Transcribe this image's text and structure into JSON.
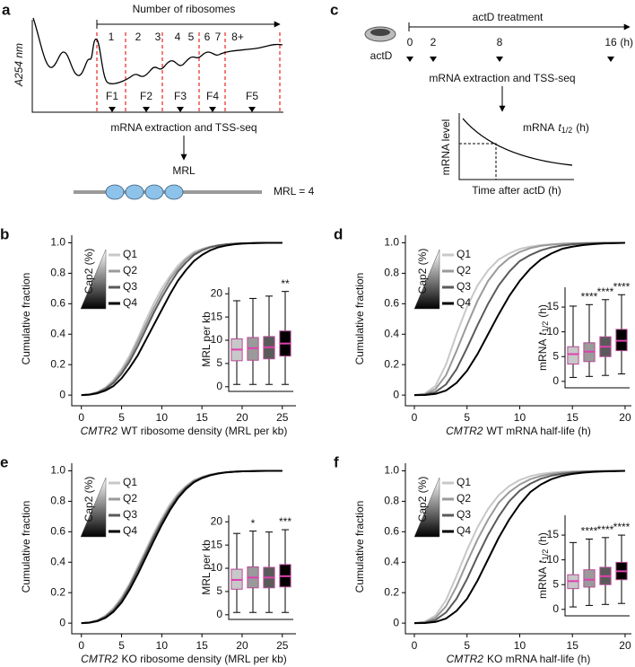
{
  "panel_a": {
    "label": "a",
    "y_label": "A254 nm",
    "header": "Number of ribosomes",
    "ribosome_counts": [
      "1",
      "2",
      "3",
      "4",
      "5",
      "6",
      "7",
      "8+"
    ],
    "fractions": [
      "F1",
      "F2",
      "F3",
      "F4",
      "F5"
    ],
    "step": "mRNA extraction and TSS-seq",
    "result": "MRL",
    "example": "MRL = 4"
  },
  "panel_c": {
    "label": "c",
    "drug": "actD",
    "header": "actD treatment",
    "timepoints": [
      "0",
      "2",
      "8",
      "16"
    ],
    "time_unit": "(h)",
    "step": "mRNA extraction and TSS-seq",
    "plot_ylabel": "mRNA level",
    "plot_xlabel": "Time after actD (h)",
    "plot_annotation": {
      "prefix": "mRNA",
      "symbol": "t",
      "subscript": "1/2",
      "unit": "(h)"
    }
  },
  "chart_data": [
    {
      "label": "b",
      "type": "line",
      "ylabel": "Cumulative fraction",
      "xlabel": {
        "gene": "CMTR2",
        "text": "WT ribosome density (MRL per kb)"
      },
      "legend_title": "Cap2 (%)",
      "legend": "upper left",
      "x": [
        0,
        1,
        2,
        3,
        4,
        5,
        6,
        7,
        8,
        9,
        10,
        11,
        12,
        13,
        14,
        15,
        16,
        17,
        18,
        19,
        20,
        21,
        22,
        23,
        24,
        25
      ],
      "series": [
        {
          "name": "Q1",
          "color": "#c8c8c8",
          "values": [
            0,
            0.005,
            0.02,
            0.05,
            0.1,
            0.17,
            0.26,
            0.37,
            0.49,
            0.6,
            0.7,
            0.78,
            0.85,
            0.9,
            0.94,
            0.96,
            0.975,
            0.985,
            0.99,
            0.995,
            0.997,
            0.998,
            0.999,
            1,
            1,
            1
          ]
        },
        {
          "name": "Q2",
          "color": "#9a9a9a",
          "values": [
            0,
            0.004,
            0.018,
            0.045,
            0.09,
            0.155,
            0.24,
            0.35,
            0.46,
            0.57,
            0.67,
            0.76,
            0.83,
            0.89,
            0.93,
            0.955,
            0.972,
            0.983,
            0.99,
            0.994,
            0.997,
            0.998,
            0.999,
            1,
            1,
            1
          ]
        },
        {
          "name": "Q3",
          "color": "#5a5a5a",
          "values": [
            0,
            0.004,
            0.016,
            0.04,
            0.08,
            0.14,
            0.22,
            0.32,
            0.43,
            0.54,
            0.64,
            0.73,
            0.81,
            0.87,
            0.92,
            0.95,
            0.97,
            0.982,
            0.99,
            0.994,
            0.997,
            0.998,
            0.999,
            1,
            1,
            1
          ]
        },
        {
          "name": "Q4",
          "color": "#000000",
          "values": [
            0,
            0.003,
            0.012,
            0.03,
            0.06,
            0.11,
            0.18,
            0.26,
            0.36,
            0.46,
            0.56,
            0.66,
            0.75,
            0.82,
            0.88,
            0.92,
            0.95,
            0.97,
            0.982,
            0.99,
            0.995,
            0.997,
            0.999,
            1,
            1,
            1
          ]
        }
      ],
      "xlim": [
        -1.2,
        26.7
      ],
      "ylim": [
        -0.07,
        1.05
      ],
      "xticks": [
        0,
        5,
        10,
        15,
        20,
        25
      ],
      "yticks": [
        0,
        0.2,
        0.4,
        0.6,
        0.8,
        {
          "value": 1,
          "label": "1.0"
        }
      ],
      "inset": {
        "type": "box",
        "ylabel": "MRL per kb",
        "ylim": [
          -1,
          21.4
        ],
        "yticks": [
          0,
          5,
          10,
          15,
          20
        ],
        "median_color": "#e040b0",
        "box_edge_color": "#b84a98",
        "boxes": [
          {
            "min": 0.5,
            "q1": 5.6,
            "median": 8,
            "q3": 10.3,
            "max": 18.5
          },
          {
            "min": 0.5,
            "q1": 5.7,
            "median": 8.3,
            "q3": 10.6,
            "max": 19
          },
          {
            "min": 0.5,
            "q1": 6,
            "median": 8.5,
            "q3": 10.8,
            "max": 19.5
          },
          {
            "min": 0.5,
            "q1": 6.6,
            "median": 9.3,
            "q3": 12,
            "max": 20.5
          }
        ],
        "significance": [
          null,
          null,
          null,
          "**"
        ]
      }
    },
    {
      "label": "d",
      "type": "line",
      "ylabel": "Cumulative fraction",
      "xlabel": {
        "gene": "CMTR2",
        "text": "WT mRNA half-life (h)"
      },
      "legend_title": "Cap2 (%)",
      "legend": "upper left",
      "x": [
        0,
        1,
        2,
        3,
        4,
        5,
        6,
        7,
        8,
        9,
        10,
        11,
        12,
        13,
        14,
        15,
        16,
        17,
        18,
        19,
        20
      ],
      "series": [
        {
          "name": "Q1",
          "color": "#c8c8c8",
          "values": [
            0,
            0.01,
            0.06,
            0.2,
            0.4,
            0.58,
            0.72,
            0.82,
            0.89,
            0.93,
            0.96,
            0.975,
            0.985,
            0.99,
            0.995,
            0.997,
            0.998,
            0.999,
            1,
            1,
            1
          ]
        },
        {
          "name": "Q2",
          "color": "#9a9a9a",
          "values": [
            0,
            0.005,
            0.04,
            0.13,
            0.29,
            0.46,
            0.62,
            0.75,
            0.84,
            0.9,
            0.94,
            0.965,
            0.98,
            0.988,
            0.993,
            0.996,
            0.998,
            0.999,
            1,
            1,
            1
          ]
        },
        {
          "name": "Q3",
          "color": "#5a5a5a",
          "values": [
            0,
            0.003,
            0.02,
            0.07,
            0.17,
            0.31,
            0.46,
            0.6,
            0.72,
            0.81,
            0.88,
            0.92,
            0.95,
            0.97,
            0.982,
            0.99,
            0.995,
            0.997,
            0.999,
            1,
            1
          ]
        },
        {
          "name": "Q4",
          "color": "#000000",
          "values": [
            0,
            0.001,
            0.008,
            0.03,
            0.08,
            0.16,
            0.27,
            0.4,
            0.53,
            0.65,
            0.75,
            0.83,
            0.89,
            0.93,
            0.96,
            0.975,
            0.985,
            0.992,
            0.996,
            0.998,
            1
          ]
        }
      ],
      "xlim": [
        -0.85,
        20.6
      ],
      "ylim": [
        -0.07,
        1.05
      ],
      "xticks": [
        0,
        5,
        10,
        15,
        20
      ],
      "yticks": [
        0,
        0.2,
        0.4,
        0.6,
        0.8,
        {
          "value": 1,
          "label": "1.0"
        }
      ],
      "inset": {
        "type": "box",
        "ylabel": {
          "prefix": "mRNA",
          "symbol": "t",
          "subscript": "1/2",
          "unit": "(h)"
        },
        "ylim": [
          -1.3,
          19
        ],
        "yticks": [
          0,
          5,
          10,
          15
        ],
        "median_color": "#e040b0",
        "box_edge_color": "#b84a98",
        "boxes": [
          {
            "min": 0.8,
            "q1": 3.5,
            "median": 5.5,
            "q3": 7,
            "max": 15.2
          },
          {
            "min": 1,
            "q1": 4,
            "median": 6,
            "q3": 7.8,
            "max": 15.5
          },
          {
            "min": 1.2,
            "q1": 5,
            "median": 7,
            "q3": 9,
            "max": 16.5
          },
          {
            "min": 1.5,
            "q1": 6.2,
            "median": 8.2,
            "q3": 10.5,
            "max": 17.5
          }
        ],
        "significance": [
          null,
          "****",
          "****",
          "****"
        ]
      }
    },
    {
      "label": "e",
      "type": "line",
      "ylabel": "Cumulative fraction",
      "xlabel": {
        "gene": "CMTR2",
        "text": "KO ribosome density (MRL per kb)"
      },
      "legend_title": "Cap2 (%)",
      "legend": "upper left",
      "x": [
        0,
        1,
        2,
        3,
        4,
        5,
        6,
        7,
        8,
        9,
        10,
        11,
        12,
        13,
        14,
        15,
        16,
        17,
        18,
        19,
        20,
        21,
        22,
        23,
        24,
        25
      ],
      "series": [
        {
          "name": "Q1",
          "color": "#c8c8c8",
          "values": [
            0,
            0.005,
            0.02,
            0.05,
            0.1,
            0.17,
            0.26,
            0.37,
            0.48,
            0.59,
            0.69,
            0.78,
            0.85,
            0.9,
            0.94,
            0.96,
            0.975,
            0.985,
            0.99,
            0.995,
            0.997,
            0.998,
            0.999,
            1,
            1,
            1
          ]
        },
        {
          "name": "Q2",
          "color": "#9a9a9a",
          "values": [
            0,
            0.004,
            0.017,
            0.045,
            0.09,
            0.16,
            0.25,
            0.355,
            0.465,
            0.575,
            0.675,
            0.765,
            0.84,
            0.895,
            0.935,
            0.958,
            0.974,
            0.984,
            0.99,
            0.994,
            0.997,
            0.998,
            0.999,
            1,
            1,
            1
          ]
        },
        {
          "name": "Q3",
          "color": "#5a5a5a",
          "values": [
            0,
            0.004,
            0.016,
            0.042,
            0.085,
            0.15,
            0.24,
            0.345,
            0.455,
            0.565,
            0.665,
            0.755,
            0.83,
            0.89,
            0.93,
            0.955,
            0.972,
            0.983,
            0.99,
            0.994,
            0.997,
            0.998,
            0.999,
            1,
            1,
            1
          ]
        },
        {
          "name": "Q4",
          "color": "#000000",
          "values": [
            0,
            0.003,
            0.013,
            0.035,
            0.075,
            0.135,
            0.22,
            0.32,
            0.43,
            0.54,
            0.645,
            0.74,
            0.82,
            0.88,
            0.925,
            0.952,
            0.97,
            0.982,
            0.99,
            0.994,
            0.997,
            0.998,
            0.999,
            1,
            1,
            1
          ]
        }
      ],
      "xlim": [
        -1.2,
        26.7
      ],
      "ylim": [
        -0.07,
        1.05
      ],
      "xticks": [
        0,
        5,
        10,
        15,
        20,
        25
      ],
      "yticks": [
        0,
        0.2,
        0.4,
        0.6,
        0.8,
        {
          "value": 1,
          "label": "1.0"
        }
      ],
      "inset": {
        "type": "box",
        "ylabel": "MRL per kb",
        "ylim": [
          -1,
          21.4
        ],
        "yticks": [
          0,
          5,
          10,
          15,
          20
        ],
        "median_color": "#e040b0",
        "box_edge_color": "#b84a98",
        "boxes": [
          {
            "min": 0.5,
            "q1": 5.5,
            "median": 7.5,
            "q3": 9.8,
            "max": 17.5
          },
          {
            "min": 0.5,
            "q1": 5.8,
            "median": 8,
            "q3": 10.3,
            "max": 18
          },
          {
            "min": 0.5,
            "q1": 5.8,
            "median": 8,
            "q3": 10.2,
            "max": 17.8
          },
          {
            "min": 0.5,
            "q1": 6,
            "median": 8.3,
            "q3": 10.8,
            "max": 18.3
          }
        ],
        "significance": [
          null,
          "*",
          null,
          "***"
        ]
      }
    },
    {
      "label": "f",
      "type": "line",
      "ylabel": "Cumulative fraction",
      "xlabel": {
        "gene": "CMTR2",
        "text": "KO mRNA half-life (h)"
      },
      "legend_title": "Cap2 (%)",
      "legend": "upper left",
      "x": [
        0,
        1,
        2,
        3,
        4,
        5,
        6,
        7,
        8,
        9,
        10,
        11,
        12,
        13,
        14,
        15,
        16,
        17,
        18,
        19,
        20
      ],
      "series": [
        {
          "name": "Q1",
          "color": "#c8c8c8",
          "values": [
            0,
            0.01,
            0.05,
            0.15,
            0.31,
            0.48,
            0.63,
            0.75,
            0.84,
            0.9,
            0.94,
            0.965,
            0.98,
            0.988,
            0.993,
            0.996,
            0.998,
            0.999,
            1,
            1,
            1
          ]
        },
        {
          "name": "Q2",
          "color": "#9a9a9a",
          "values": [
            0,
            0.006,
            0.035,
            0.11,
            0.24,
            0.4,
            0.55,
            0.68,
            0.79,
            0.86,
            0.91,
            0.945,
            0.966,
            0.98,
            0.988,
            0.993,
            0.996,
            0.998,
            0.999,
            1,
            1
          ]
        },
        {
          "name": "Q3",
          "color": "#5a5a5a",
          "values": [
            0,
            0.003,
            0.02,
            0.07,
            0.16,
            0.29,
            0.44,
            0.58,
            0.7,
            0.8,
            0.87,
            0.915,
            0.948,
            0.968,
            0.98,
            0.988,
            0.993,
            0.996,
            0.998,
            0.999,
            1
          ]
        },
        {
          "name": "Q4",
          "color": "#000000",
          "values": [
            0,
            0.001,
            0.008,
            0.03,
            0.08,
            0.16,
            0.28,
            0.42,
            0.56,
            0.68,
            0.78,
            0.86,
            0.91,
            0.945,
            0.967,
            0.98,
            0.988,
            0.993,
            0.996,
            0.998,
            1
          ]
        }
      ],
      "xlim": [
        -0.85,
        20.6
      ],
      "ylim": [
        -0.07,
        1.05
      ],
      "xticks": [
        0,
        5,
        10,
        15,
        20
      ],
      "yticks": [
        0,
        0.2,
        0.4,
        0.6,
        0.8,
        {
          "value": 1,
          "label": "1.0"
        }
      ],
      "inset": {
        "type": "box",
        "ylabel": {
          "prefix": "mRNA",
          "symbol": "t",
          "subscript": "1/2",
          "unit": "(h)"
        },
        "ylim": [
          -1.3,
          19
        ],
        "yticks": [
          0,
          5,
          10,
          15
        ],
        "median_color": "#e040b0",
        "box_edge_color": "#b84a98",
        "boxes": [
          {
            "min": 0.5,
            "q1": 4.2,
            "median": 5.7,
            "q3": 7,
            "max": 13.5
          },
          {
            "min": 0.8,
            "q1": 4.5,
            "median": 6,
            "q3": 8,
            "max": 14.2
          },
          {
            "min": 1,
            "q1": 5,
            "median": 6.7,
            "q3": 8.5,
            "max": 14.5
          },
          {
            "min": 1.2,
            "q1": 6,
            "median": 7.7,
            "q3": 9.5,
            "max": 15
          }
        ],
        "significance": [
          null,
          "****",
          "****",
          "****"
        ]
      }
    }
  ]
}
